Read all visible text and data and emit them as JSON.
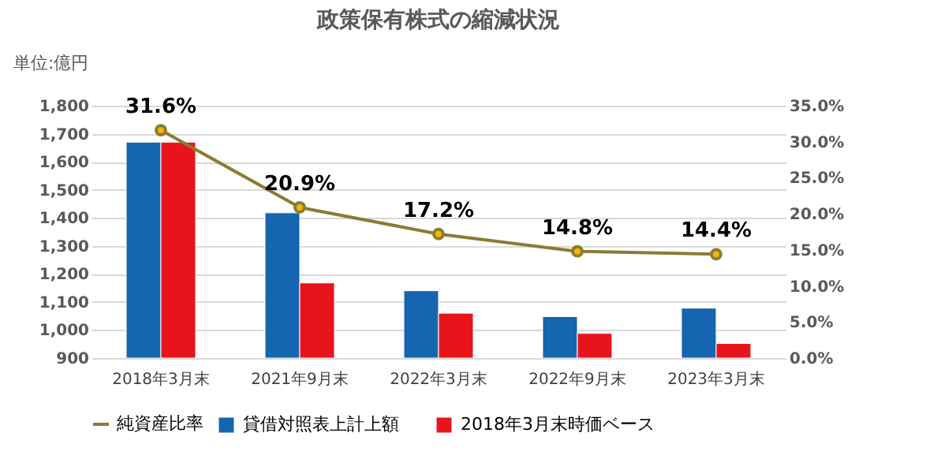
{
  "chart_data": {
    "type": "bar",
    "title": "政策保有株式の縮減状況",
    "ylabel": "単位:億円",
    "categories": [
      "2018年3月末",
      "2021年9月末",
      "2022年3月末",
      "2022年9月末",
      "2023年3月末"
    ],
    "series": [
      {
        "name": "貸借対照表上計上額",
        "color": "#1565b0",
        "values": [
          1670,
          1418,
          1140,
          1048,
          1078
        ]
      },
      {
        "name": "2018年3月末時価ベース",
        "color": "#e8141c",
        "values": [
          1670,
          1168,
          1060,
          988,
          952
        ]
      },
      {
        "name": "純資産比率",
        "type": "line",
        "axis": "y2",
        "color": "#8c7b32",
        "marker": "circle",
        "values": [
          31.6,
          20.9,
          17.2,
          14.8,
          14.4
        ],
        "value_labels": [
          "31.6%",
          "20.9%",
          "17.2%",
          "14.8%",
          "14.4%"
        ]
      }
    ],
    "ylim": [
      900,
      1800
    ],
    "yticks": [
      {
        "value": 900,
        "label": "900"
      },
      {
        "value": 1000,
        "label": "1,000"
      },
      {
        "value": 1100,
        "label": "1,100"
      },
      {
        "value": 1200,
        "label": "1,200"
      },
      {
        "value": 1300,
        "label": "1,300"
      },
      {
        "value": 1400,
        "label": "1,400"
      },
      {
        "value": 1500,
        "label": "1,500"
      },
      {
        "value": 1600,
        "label": "1,600"
      },
      {
        "value": 1700,
        "label": "1,700"
      },
      {
        "value": 1800,
        "label": "1,800"
      }
    ],
    "y2lim": [
      0,
      35
    ],
    "y2ticks": [
      {
        "value": 0,
        "label": "0.0%"
      },
      {
        "value": 5,
        "label": "5.0%"
      },
      {
        "value": 10,
        "label": "10.0%"
      },
      {
        "value": 15,
        "label": "15.0%"
      },
      {
        "value": 20,
        "label": "20.0%"
      },
      {
        "value": 25,
        "label": "25.0%"
      },
      {
        "value": 30,
        "label": "30.0%"
      },
      {
        "value": 35,
        "label": "35.0%"
      }
    ],
    "grid": "y",
    "legend": "bottom"
  }
}
